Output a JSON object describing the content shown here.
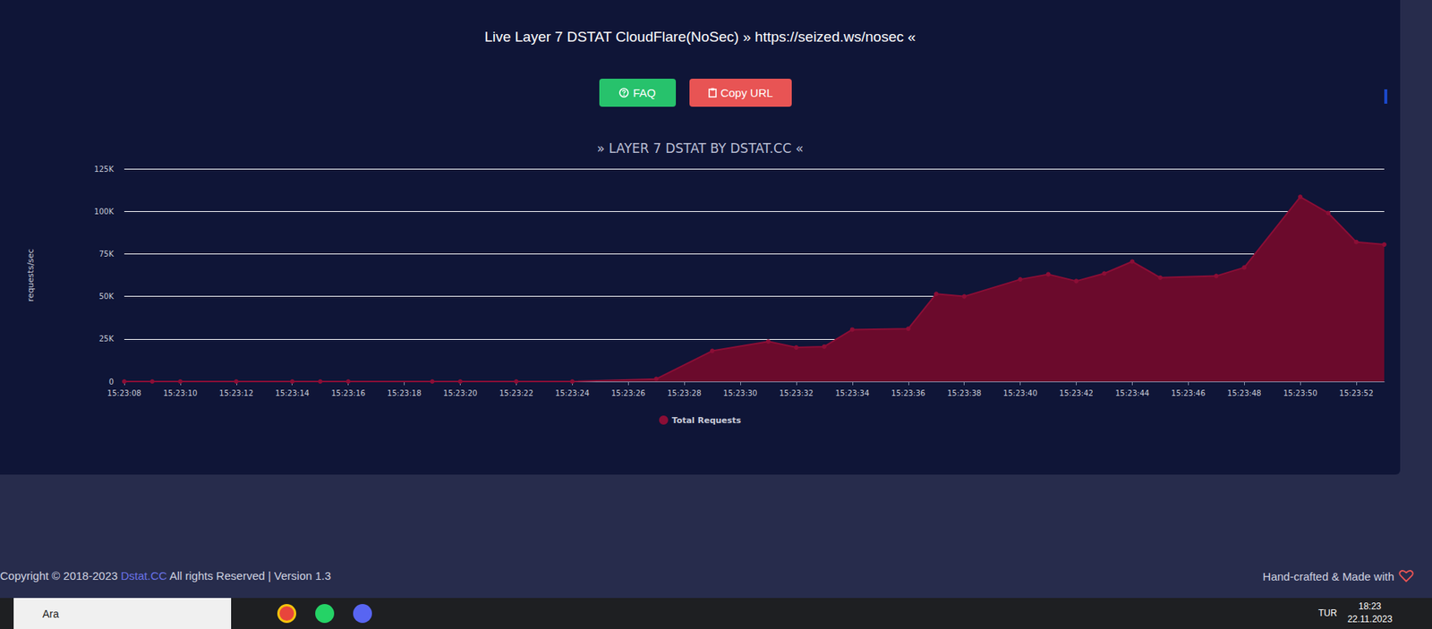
{
  "page": {
    "heading": "Live Layer 7 DSTAT CloudFlare(NoSec) » https://seized.ws/nosec «",
    "buttons": [
      "FAQ",
      "Copy URL"
    ],
    "footer": {
      "left": [
        "Copyright © 2018-2023 ",
        "Dstat.CC",
        " All rights Reserved | Version 1.3"
      ],
      "right": "Hand-crafted & Made with"
    },
    "taskbar": {
      "search": "Ara",
      "language": "TUR",
      "time": "18:23",
      "date": "22.11.2023"
    }
  },
  "chart_data": {
    "type": "area",
    "title": "» LAYER 7 DSTAT BY DSTAT.CC «",
    "y_label": "requests/sec",
    "x": [
      "15:23:08",
      "15:23:09",
      "15:23:10",
      "15:23:12",
      "15:23:14",
      "15:23:15",
      "15:23:16",
      "15:23:19",
      "15:23:20",
      "15:23:22",
      "15:23:24",
      "15:23:27",
      "15:23:29",
      "15:23:31",
      "15:23:32",
      "15:23:33",
      "15:23:34",
      "15:23:36",
      "15:23:37",
      "15:23:38",
      "15:23:40",
      "15:23:41",
      "15:23:42",
      "15:23:43",
      "15:23:44",
      "15:23:45",
      "15:23:47",
      "15:23:48",
      "15:23:50",
      "15:23:51",
      "15:23:52",
      "15:23:53"
    ],
    "series": [
      {
        "name": "Total Requests",
        "color": "#8b0e36",
        "values": [
          0,
          0,
          0,
          0,
          0,
          0,
          0,
          0,
          0,
          0,
          0,
          1500,
          18000,
          23500,
          20000,
          20500,
          30500,
          31000,
          51500,
          50000,
          60000,
          63000,
          59000,
          63500,
          70500,
          61000,
          62000,
          67000,
          108500,
          99000,
          82000,
          80500
        ]
      }
    ],
    "xlim": [
      "15:23:08",
      "15:23:53"
    ],
    "xticks": [
      "15:23:08",
      "15:23:10",
      "15:23:12",
      "15:23:14",
      "15:23:16",
      "15:23:18",
      "15:23:20",
      "15:23:22",
      "15:23:24",
      "15:23:26",
      "15:23:28",
      "15:23:30",
      "15:23:32",
      "15:23:34",
      "15:23:36",
      "15:23:38",
      "15:23:40",
      "15:23:42",
      "15:23:44",
      "15:23:46",
      "15:23:48",
      "15:23:50",
      "15:23:52"
    ],
    "ylim": [
      0,
      125000
    ],
    "yticks": [
      0,
      {
        "value": 25000,
        "label": "25K"
      },
      {
        "value": 50000,
        "label": "50K"
      },
      {
        "value": 75000,
        "label": "75K"
      },
      {
        "value": 100000,
        "label": "100K"
      },
      {
        "value": 125000,
        "label": "125K"
      }
    ],
    "grid": true,
    "legend": "bottom",
    "marker": "circle"
  }
}
